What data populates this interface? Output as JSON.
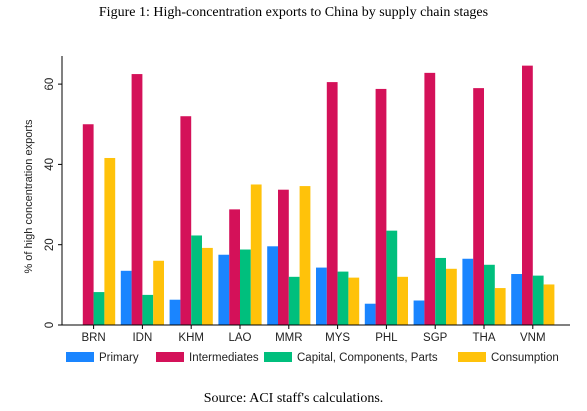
{
  "figure_title": "Figure 1: High-concentration exports to China by supply chain stages",
  "source": "Source: ACI staff's calculations.",
  "colors": {
    "primary": "#1a85ff",
    "intermediates": "#d41159",
    "capital": "#00bf7d",
    "consumption": "#ffc20a",
    "axis": "#000000"
  },
  "chart_data": {
    "type": "bar",
    "title": "",
    "xlabel": "",
    "ylabel": "% of high concentration exports",
    "ylim": [
      0,
      67
    ],
    "yticks": [
      0,
      20,
      40,
      60
    ],
    "grid": false,
    "legend_position": "bottom",
    "categories": [
      "BRN",
      "IDN",
      "KHM",
      "LAO",
      "MMR",
      "MYS",
      "PHL",
      "SGP",
      "THA",
      "VNM"
    ],
    "series": [
      {
        "name": "Primary",
        "color_key": "primary",
        "values": [
          0,
          13.5,
          6.3,
          17.5,
          19.6,
          14.3,
          5.3,
          6.1,
          16.5,
          12.7
        ]
      },
      {
        "name": "Intermediates",
        "color_key": "intermediates",
        "values": [
          50.0,
          62.5,
          52.0,
          28.8,
          33.7,
          60.5,
          58.8,
          62.8,
          59.0,
          64.6
        ]
      },
      {
        "name": "Capital, Components, Parts",
        "color_key": "capital",
        "values": [
          8.2,
          7.5,
          22.3,
          18.8,
          12.0,
          13.3,
          23.5,
          16.7,
          15.0,
          12.3
        ]
      },
      {
        "name": "Consumption",
        "color_key": "consumption",
        "values": [
          41.6,
          16.0,
          19.2,
          35.0,
          34.6,
          11.8,
          12.0,
          14.0,
          9.2,
          10.1
        ]
      }
    ]
  }
}
